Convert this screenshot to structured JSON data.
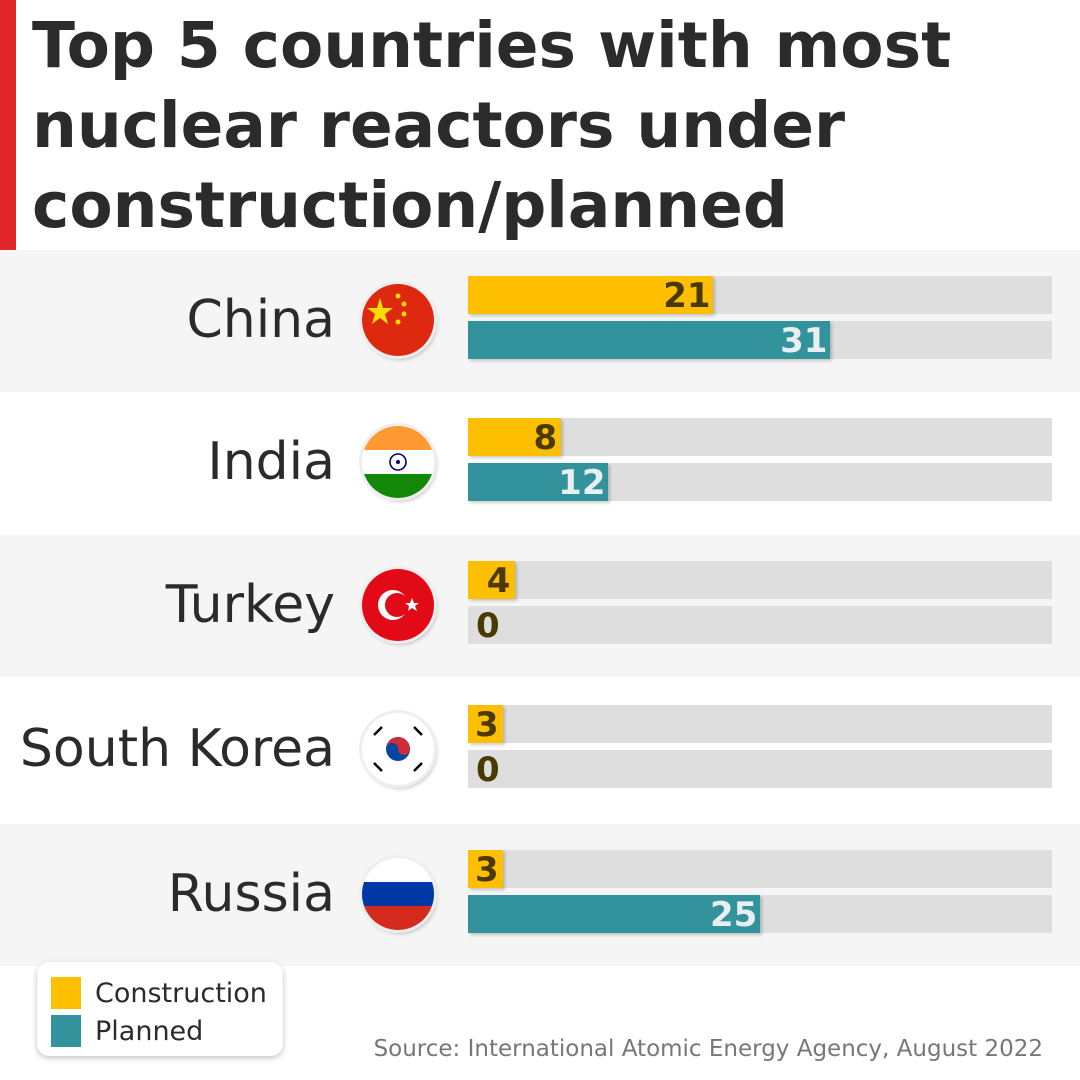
{
  "chart_data": {
    "type": "bar",
    "title": "Top 5 countries with most nuclear reactors under construction/planned",
    "categories": [
      "China",
      "India",
      "Turkey",
      "South Korea",
      "Russia"
    ],
    "series": [
      {
        "name": "Construction",
        "values": [
          21,
          8,
          4,
          3,
          3
        ],
        "color": "#fdbf00",
        "label_color": "#4a3a00"
      },
      {
        "name": "Planned",
        "values": [
          31,
          12,
          0,
          0,
          25
        ],
        "color": "#33939c",
        "label_color": "#e9eef0"
      }
    ],
    "xlim": [
      0,
      50
    ],
    "orientation": "horizontal",
    "legend": "bottom-left",
    "source": "Source: International Atomic Energy Agency, August 2022"
  },
  "flags": [
    "china-flag",
    "india-flag",
    "turkey-flag",
    "south-korea-flag",
    "russia-flag"
  ],
  "accent_color": "#e3262a"
}
